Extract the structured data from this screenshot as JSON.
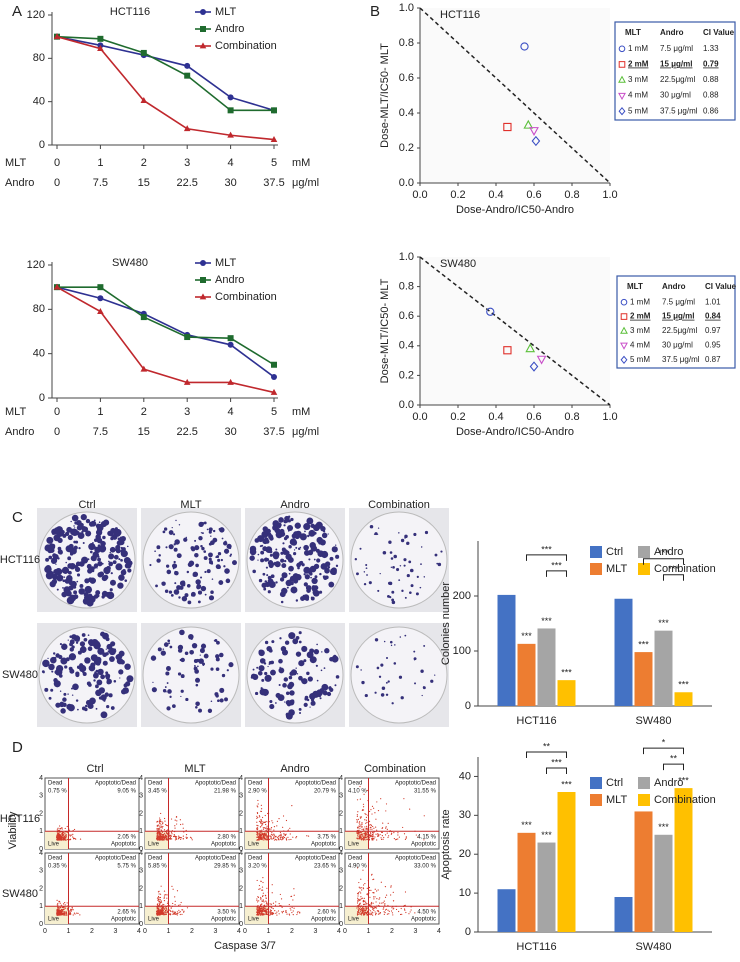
{
  "panel_labels": [
    "A",
    "B",
    "C",
    "D"
  ],
  "colony_photos": {
    "columns": [
      "Ctrl",
      "MLT",
      "Andro",
      "Combination"
    ],
    "rows": [
      "HCT116",
      "SW480"
    ]
  },
  "chart_data": [
    {
      "type": "line",
      "title": "HCT116",
      "category_label": "MLT",
      "category_unit": "mM",
      "categories": [
        "0",
        "1",
        "2",
        "3",
        "4",
        "5"
      ],
      "category2_label": "Andro",
      "category2_unit": "μg/ml",
      "categories2": [
        "0",
        "7.5",
        "15",
        "22.5",
        "30",
        "37.5"
      ],
      "ylim": [
        0,
        120
      ],
      "yticks": [
        0,
        40,
        80,
        120
      ],
      "series": [
        {
          "name": "MLT",
          "color": "#2e3192",
          "marker": "circle",
          "values": [
            100,
            92,
            83,
            73,
            44,
            32
          ]
        },
        {
          "name": "Andro",
          "color": "#1f6b2e",
          "marker": "square",
          "values": [
            100,
            98,
            85,
            64,
            32,
            32
          ]
        },
        {
          "name": "Combination",
          "color": "#c0282d",
          "marker": "triangle",
          "values": [
            100,
            89,
            41,
            15,
            9,
            5
          ]
        }
      ]
    },
    {
      "type": "line",
      "title": "SW480",
      "category_label": "MLT",
      "category_unit": "mM",
      "categories": [
        "0",
        "1",
        "2",
        "3",
        "4",
        "5"
      ],
      "category2_label": "Andro",
      "category2_unit": "μg/ml",
      "categories2": [
        "0",
        "7.5",
        "15",
        "22.5",
        "30",
        "37.5"
      ],
      "ylim": [
        0,
        120
      ],
      "yticks": [
        0,
        40,
        80,
        120
      ],
      "series": [
        {
          "name": "MLT",
          "color": "#2e3192",
          "marker": "circle",
          "values": [
            100,
            90,
            76,
            57,
            48,
            19
          ]
        },
        {
          "name": "Andro",
          "color": "#1f6b2e",
          "marker": "square",
          "values": [
            100,
            100,
            73,
            55,
            54,
            30
          ]
        },
        {
          "name": "Combination",
          "color": "#c0282d",
          "marker": "triangle",
          "values": [
            100,
            78,
            26,
            14,
            14,
            5
          ]
        }
      ]
    },
    {
      "type": "isobologram",
      "title": "HCT116",
      "xlabel": "Dose-Andro/IC50-Andro",
      "ylabel": "Dose-MLT/IC50- MLT",
      "xlim": [
        0,
        1
      ],
      "ylim": [
        0,
        1
      ],
      "xticks": [
        {
          "value": 0,
          "label": "0.0"
        },
        0.2,
        0.4,
        0.6,
        0.8,
        {
          "value": 1,
          "label": "1.0"
        }
      ],
      "yticks": [
        {
          "value": 0,
          "label": "0.0"
        },
        0.2,
        0.4,
        0.6,
        0.8,
        {
          "value": 1,
          "label": "1.0"
        }
      ],
      "points": [
        {
          "x": 0.55,
          "y": 0.78,
          "marker": "circle",
          "color": "#3b4fc4"
        },
        {
          "x": 0.46,
          "y": 0.32,
          "marker": "square",
          "color": "#e0302a"
        },
        {
          "x": 0.57,
          "y": 0.33,
          "marker": "triangle",
          "color": "#5bbf3a"
        },
        {
          "x": 0.6,
          "y": 0.3,
          "marker": "down-triangle",
          "color": "#c94fc9"
        },
        {
          "x": 0.61,
          "y": 0.24,
          "marker": "diamond",
          "color": "#3b4fc4"
        }
      ],
      "table": {
        "columns": [
          "MLT",
          "Andro",
          "CI Value"
        ],
        "highlight_row": 1,
        "rows": [
          [
            "1 mM",
            "7.5 μg/ml",
            "1.33"
          ],
          [
            "2 mM",
            "15 μg/ml",
            "0.79"
          ],
          [
            "3 mM",
            "22.5μg/ml",
            "0.88"
          ],
          [
            "4 mM",
            "30 μg/ml",
            "0.88"
          ],
          [
            "5 mM",
            "37.5 μg/ml",
            "0.86"
          ]
        ]
      }
    },
    {
      "type": "isobologram",
      "title": "SW480",
      "xlabel": "Dose-Andro/IC50-Andro",
      "ylabel": "Dose-MLT/IC50- MLT",
      "xlim": [
        0,
        1
      ],
      "ylim": [
        0,
        1
      ],
      "xticks": [
        {
          "value": 0,
          "label": "0.0"
        },
        0.2,
        0.4,
        0.6,
        0.8,
        {
          "value": 1,
          "label": "1.0"
        }
      ],
      "yticks": [
        {
          "value": 0,
          "label": "0.0"
        },
        0.2,
        0.4,
        0.6,
        0.8,
        {
          "value": 1,
          "label": "1.0"
        }
      ],
      "points": [
        {
          "x": 0.37,
          "y": 0.63,
          "marker": "circle",
          "color": "#3b4fc4"
        },
        {
          "x": 0.46,
          "y": 0.37,
          "marker": "square",
          "color": "#e0302a"
        },
        {
          "x": 0.58,
          "y": 0.38,
          "marker": "triangle",
          "color": "#5bbf3a"
        },
        {
          "x": 0.64,
          "y": 0.31,
          "marker": "down-triangle",
          "color": "#c94fc9"
        },
        {
          "x": 0.6,
          "y": 0.26,
          "marker": "diamond",
          "color": "#3b4fc4"
        }
      ],
      "table": {
        "columns": [
          "MLT",
          "Andro",
          "CI Value"
        ],
        "highlight_row": 1,
        "rows": [
          [
            "1 mM",
            "7.5 μg/ml",
            "1.01"
          ],
          [
            "2 mM",
            "15 μg/ml",
            "0.84"
          ],
          [
            "3 mM",
            "22.5μg/ml",
            "0.97"
          ],
          [
            "4 mM",
            "30 μg/ml",
            "0.95"
          ],
          [
            "5 mM",
            "37.5 μg/ml",
            "0.87"
          ]
        ]
      }
    },
    {
      "type": "bar",
      "ylabel": "Colonies number",
      "categories": [
        "HCT116",
        "SW480"
      ],
      "ylim": [
        0,
        300
      ],
      "yticks": [
        0,
        100,
        200
      ],
      "series": [
        {
          "name": "Ctrl",
          "color": "#4472c4",
          "values": [
            202,
            195
          ]
        },
        {
          "name": "MLT",
          "color": "#ed7d31",
          "values": [
            113,
            98
          ],
          "stars": [
            "***",
            "***"
          ]
        },
        {
          "name": "Andro",
          "color": "#a5a5a5",
          "values": [
            141,
            137
          ],
          "stars": [
            "***",
            "***"
          ]
        },
        {
          "name": "Combination",
          "color": "#ffc000",
          "values": [
            47,
            25
          ],
          "stars": [
            "***",
            "***"
          ]
        }
      ],
      "brackets": [
        {
          "group": 0,
          "from": 1,
          "to": 3,
          "text": "***"
        },
        {
          "group": 0,
          "from": 2,
          "to": 3,
          "text": "***"
        },
        {
          "group": 1,
          "from": 1,
          "to": 3,
          "text": "***"
        },
        {
          "group": 1,
          "from": 2,
          "to": 3,
          "text": "***"
        }
      ]
    },
    {
      "type": "flow",
      "xlabel": "Caspase 3/7",
      "ylabel": "Viability",
      "ticks": [
        0,
        1,
        2,
        3,
        4
      ],
      "columns": [
        "Ctrl",
        "MLT",
        "Andro",
        "Combination"
      ],
      "rows": [
        "HCT116",
        "SW480"
      ],
      "quadrants": {
        "dead": "Dead",
        "apodead": "Apoptotic/Dead",
        "live": "Live",
        "apoptotic": "Apoptotic"
      },
      "cells": [
        [
          {
            "dead": "0.75 %",
            "apodead": "9.05 %",
            "apoptotic": "2.05 %"
          },
          {
            "dead": "3.45 %",
            "apodead": "21.98 %",
            "apoptotic": "2.80 %"
          },
          {
            "dead": "2.90 %",
            "apodead": "20.79 %",
            "apoptotic": "3.75 %"
          },
          {
            "dead": "4.10 %",
            "apodead": "31.55 %",
            "apoptotic": "4.15 %"
          }
        ],
        [
          {
            "dead": "0.35 %",
            "apodead": "5.75 %",
            "apoptotic": "2.65 %"
          },
          {
            "dead": "5.85 %",
            "apodead": "29.85 %",
            "apoptotic": "3.50 %"
          },
          {
            "dead": "3.20 %",
            "apodead": "23.65 %",
            "apoptotic": "2.60 %"
          },
          {
            "dead": "4.90 %",
            "apodead": "33.00 %",
            "apoptotic": "4.50 %"
          }
        ]
      ]
    },
    {
      "type": "bar",
      "ylabel": "Apoptosis rate",
      "categories": [
        "HCT116",
        "SW480"
      ],
      "ylim": [
        0,
        45
      ],
      "yticks": [
        0,
        10,
        20,
        30,
        40
      ],
      "series": [
        {
          "name": "Ctrl",
          "color": "#4472c4",
          "values": [
            11,
            9
          ]
        },
        {
          "name": "MLT",
          "color": "#ed7d31",
          "values": [
            25.5,
            31
          ],
          "stars": [
            "***",
            "***"
          ]
        },
        {
          "name": "Andro",
          "color": "#a5a5a5",
          "values": [
            23,
            25
          ],
          "stars": [
            "***",
            "***"
          ]
        },
        {
          "name": "Combination",
          "color": "#ffc000",
          "values": [
            36,
            37
          ],
          "stars": [
            "***",
            "***"
          ]
        }
      ],
      "brackets": [
        {
          "group": 0,
          "from": 1,
          "to": 3,
          "text": "**"
        },
        {
          "group": 0,
          "from": 2,
          "to": 3,
          "text": "***"
        },
        {
          "group": 1,
          "from": 1,
          "to": 3,
          "text": "*"
        },
        {
          "group": 1,
          "from": 2,
          "to": 3,
          "text": "**"
        }
      ]
    }
  ]
}
